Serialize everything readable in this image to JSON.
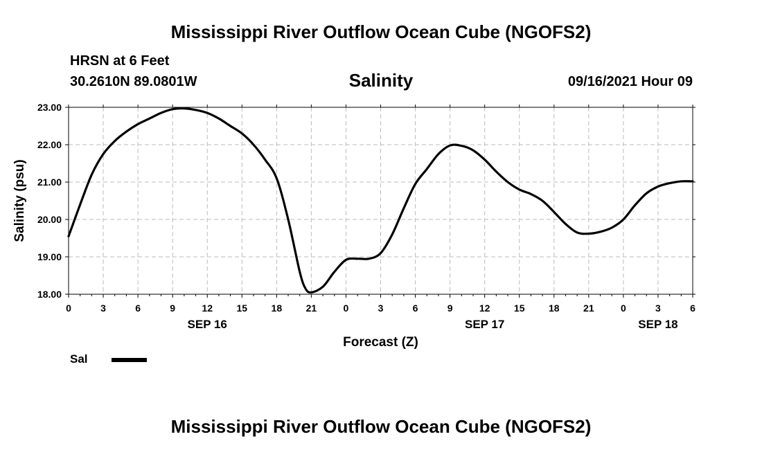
{
  "header": {
    "title": "Mississippi River Outflow Ocean Cube (NGOFS2)",
    "station": "HRSN at 6 Feet",
    "coords": "30.2610N  89.0801W",
    "variable": "Salinity",
    "datetime": "09/16/2021 Hour 09"
  },
  "footer": {
    "title": "Mississippi River Outflow Ocean Cube (NGOFS2)"
  },
  "legend": {
    "label": "Sal"
  },
  "colors": {
    "line": "#000000",
    "grid": "#bbbbbb",
    "background": "#ffffff"
  },
  "chart_data": {
    "type": "line",
    "title": "Salinity",
    "xlabel": "Forecast (Z)",
    "ylabel": "Salinity (psu)",
    "xlim": [
      0,
      54
    ],
    "ylim": [
      18,
      23
    ],
    "grid": true,
    "x_ticks": [
      0,
      3,
      6,
      9,
      12,
      15,
      18,
      21,
      24,
      27,
      30,
      33,
      36,
      39,
      42,
      45,
      48,
      51,
      54
    ],
    "x_tick_labels": [
      "0",
      "3",
      "6",
      "9",
      "12",
      "15",
      "18",
      "21",
      "0",
      "3",
      "6",
      "9",
      "12",
      "15",
      "18",
      "21",
      "0",
      "3",
      "6"
    ],
    "y_ticks": [
      18,
      19,
      20,
      21,
      22,
      23
    ],
    "y_tick_labels": [
      "18.00",
      "19.00",
      "20.00",
      "21.00",
      "22.00",
      "23.00"
    ],
    "date_labels": [
      {
        "x": 12,
        "label": "SEP 16"
      },
      {
        "x": 36,
        "label": "SEP 17"
      },
      {
        "x": 51,
        "label": "SEP 18"
      }
    ],
    "series": [
      {
        "name": "Sal",
        "x": [
          0,
          1,
          2,
          3,
          4,
          5,
          6,
          7,
          8,
          9,
          10,
          11,
          12,
          13,
          14,
          15,
          16,
          17,
          18,
          19,
          20,
          20.5,
          21,
          22,
          23,
          24,
          25,
          26,
          27,
          28,
          29,
          30,
          31,
          32,
          33,
          34,
          35,
          36,
          37,
          38,
          39,
          40,
          41,
          42,
          43,
          44,
          45,
          46,
          47,
          48,
          49,
          50,
          51,
          52,
          53,
          54
        ],
        "values": [
          19.55,
          20.4,
          21.2,
          21.75,
          22.1,
          22.35,
          22.55,
          22.7,
          22.85,
          22.95,
          22.97,
          22.93,
          22.85,
          22.7,
          22.5,
          22.3,
          22.0,
          21.6,
          21.1,
          20.0,
          18.6,
          18.15,
          18.05,
          18.2,
          18.6,
          18.92,
          18.95,
          18.95,
          19.1,
          19.6,
          20.3,
          20.95,
          21.35,
          21.75,
          21.98,
          21.97,
          21.85,
          21.6,
          21.28,
          21.0,
          20.8,
          20.68,
          20.5,
          20.2,
          19.88,
          19.65,
          19.62,
          19.67,
          19.78,
          20.0,
          20.38,
          20.7,
          20.88,
          20.97,
          21.02,
          21.02
        ]
      }
    ]
  }
}
